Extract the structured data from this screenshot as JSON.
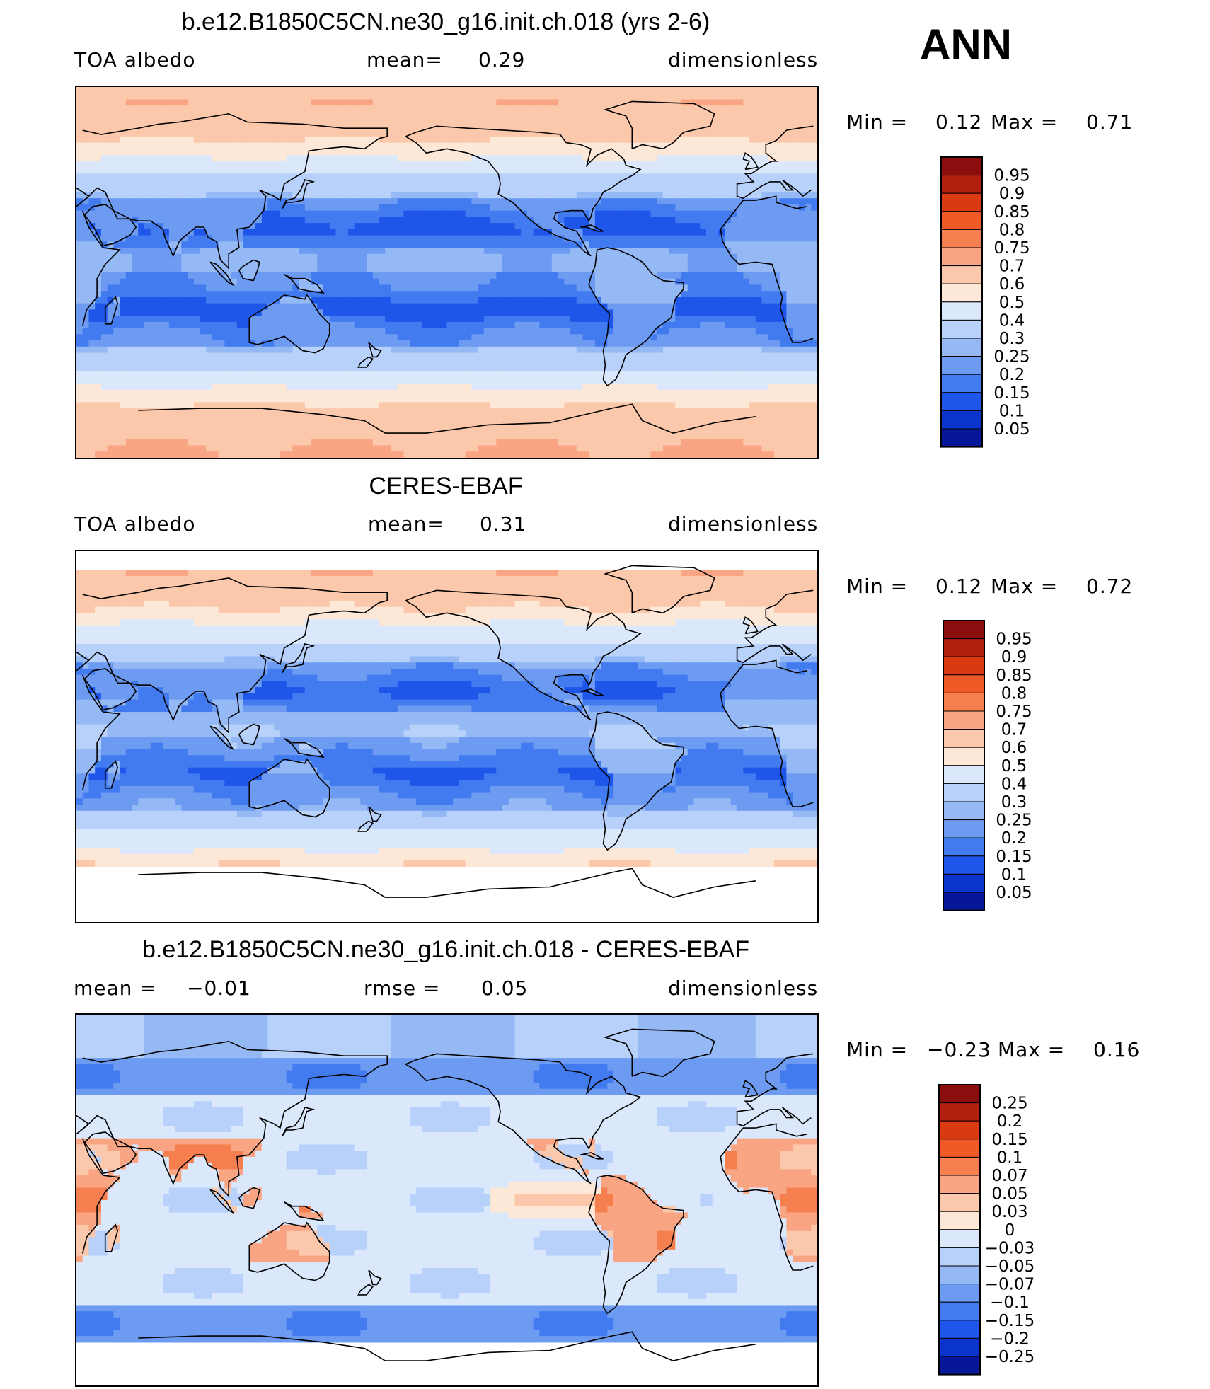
{
  "season": "ANN",
  "panels": [
    {
      "id": "model",
      "title": "b.e12.B1850C5CN.ne30_g16.init.ch.018 (yrs 2-6)",
      "left_label": "TOA albedo",
      "center_label": "mean=",
      "center_value": "0.29",
      "right_label": "dimensionless",
      "min_label": "Min =",
      "min_value": "0.12",
      "max_label": "Max =",
      "max_value": "0.71",
      "levels": [
        "0.95",
        "0.9",
        "0.85",
        "0.8",
        "0.75",
        "0.7",
        "0.6",
        "0.5",
        "0.4",
        "0.3",
        "0.25",
        "0.2",
        "0.15",
        "0.1",
        "0.05"
      ],
      "colors": [
        "#8c0d0d",
        "#b31f0e",
        "#d93a10",
        "#ef5a26",
        "#f67f4f",
        "#f9a583",
        "#fbc8ab",
        "#fde8d8",
        "#dbe8fb",
        "#b8d1fa",
        "#94b9f5",
        "#6d9bf1",
        "#427bf0",
        "#1d56e8",
        "#0a34cc",
        "#06179a"
      ],
      "map_field": "albedo_model"
    },
    {
      "id": "obs",
      "title": "CERES-EBAF",
      "left_label": "TOA albedo",
      "center_label": "mean=",
      "center_value": "0.31",
      "right_label": "dimensionless",
      "min_label": "Min =",
      "min_value": "0.12",
      "max_label": "Max =",
      "max_value": "0.72",
      "levels": [
        "0.95",
        "0.9",
        "0.85",
        "0.8",
        "0.75",
        "0.7",
        "0.6",
        "0.5",
        "0.4",
        "0.3",
        "0.25",
        "0.2",
        "0.15",
        "0.1",
        "0.05"
      ],
      "colors": [
        "#8c0d0d",
        "#b31f0e",
        "#d93a10",
        "#ef5a26",
        "#f67f4f",
        "#f9a583",
        "#fbc8ab",
        "#fde8d8",
        "#dbe8fb",
        "#b8d1fa",
        "#94b9f5",
        "#6d9bf1",
        "#427bf0",
        "#1d56e8",
        "#0a34cc",
        "#06179a"
      ],
      "map_field": "albedo_obs"
    },
    {
      "id": "diff",
      "title": "b.e12.B1850C5CN.ne30_g16.init.ch.018 - CERES-EBAF",
      "left_label": "mean =",
      "left_value": "−0.01",
      "center_label": "rmse =",
      "center_value": "0.05",
      "right_label": "dimensionless",
      "min_label": "Min =",
      "min_value": "−0.23",
      "max_label": "Max =",
      "max_value": "0.16",
      "levels": [
        "0.25",
        "0.2",
        "0.15",
        "0.1",
        "0.07",
        "0.05",
        "0.03",
        "0",
        "−0.03",
        "−0.05",
        "−0.07",
        "−0.1",
        "−0.15",
        "−0.2",
        "−0.25"
      ],
      "colors": [
        "#8c0d0d",
        "#b31f0e",
        "#d93a10",
        "#ef5a26",
        "#f67f4f",
        "#f9a583",
        "#fbc8ab",
        "#fde8d8",
        "#dbe8fb",
        "#b8d1fa",
        "#94b9f5",
        "#6d9bf1",
        "#427bf0",
        "#1d56e8",
        "#0a34cc",
        "#06179a"
      ],
      "map_field": "difference"
    }
  ],
  "chart_data": {
    "type": "heatmap",
    "projection": "cylindrical-equidistant, Pacific-centered",
    "grid": false,
    "panels": [
      {
        "title": "b.e12.B1850C5CN.ne30_g16.init.ch.018 (yrs 2-6)",
        "variable": "TOA albedo",
        "units": "dimensionless",
        "mean": 0.29,
        "min": 0.12,
        "max": 0.71,
        "contour_levels": [
          0.05,
          0.1,
          0.15,
          0.2,
          0.25,
          0.3,
          0.4,
          0.5,
          0.6,
          0.7,
          0.75,
          0.8,
          0.85,
          0.9,
          0.95
        ]
      },
      {
        "title": "CERES-EBAF",
        "variable": "TOA albedo",
        "units": "dimensionless",
        "mean": 0.31,
        "min": 0.12,
        "max": 0.72,
        "contour_levels": [
          0.05,
          0.1,
          0.15,
          0.2,
          0.25,
          0.3,
          0.4,
          0.5,
          0.6,
          0.7,
          0.75,
          0.8,
          0.85,
          0.9,
          0.95
        ]
      },
      {
        "title": "b.e12.B1850C5CN.ne30_g16.init.ch.018 - CERES-EBAF",
        "units": "dimensionless",
        "mean": -0.01,
        "rmse": 0.05,
        "min": -0.23,
        "max": 0.16,
        "contour_levels": [
          -0.25,
          -0.2,
          -0.15,
          -0.1,
          -0.07,
          -0.05,
          -0.03,
          0,
          0.03,
          0.05,
          0.07,
          0.1,
          0.15,
          0.2,
          0.25
        ]
      }
    ]
  }
}
